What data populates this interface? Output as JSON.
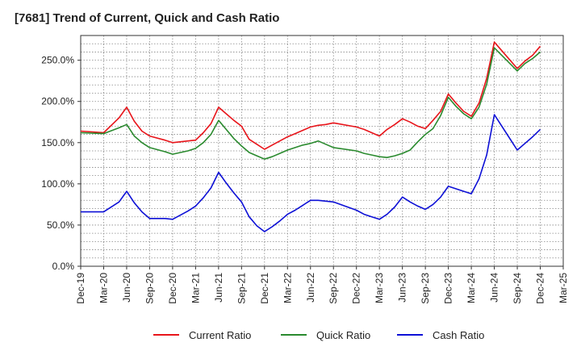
{
  "chart_data": {
    "type": "line",
    "title": "[7681]  Trend of Current, Quick and Cash Ratio",
    "xlabel": "",
    "ylabel": "",
    "ylim": [
      0,
      280
    ],
    "yticks": [
      0,
      50,
      100,
      150,
      200,
      250
    ],
    "ytick_labels": [
      "0.0%",
      "50.0%",
      "100.0%",
      "150.0%",
      "200.0%",
      "250.0%"
    ],
    "xtick_labels": [
      "Dec-19",
      "Mar-20",
      "Jun-20",
      "Sep-20",
      "Dec-20",
      "Mar-21",
      "Jun-21",
      "Sep-21",
      "Dec-21",
      "Mar-22",
      "Jun-22",
      "Sep-22",
      "Dec-22",
      "Mar-23",
      "Jun-23",
      "Sep-23",
      "Dec-23",
      "Mar-24",
      "Jun-24",
      "Sep-24",
      "Dec-24",
      "Mar-25"
    ],
    "x_month_range": [
      0,
      63
    ],
    "grid": true,
    "legend_position": "bottom",
    "series": [
      {
        "name": "Current Ratio",
        "color": "#e8141a",
        "months": [
          0,
          3,
          5,
          6,
          7,
          8,
          9,
          11,
          12,
          14,
          15,
          16,
          17,
          18,
          19,
          20,
          21,
          22,
          23,
          24,
          25,
          26,
          27,
          28,
          29,
          30,
          31,
          32,
          33,
          36,
          37,
          38,
          39,
          40,
          41,
          42,
          43,
          44,
          45,
          46,
          47,
          48,
          49,
          50,
          51,
          52,
          53,
          54,
          57,
          58,
          59,
          60
        ],
        "values": [
          164,
          162,
          180,
          193,
          176,
          164,
          158,
          153,
          150,
          152,
          153,
          162,
          173,
          193,
          185,
          177,
          170,
          154,
          148,
          142,
          147,
          152,
          157,
          161,
          165,
          169,
          171,
          172,
          174,
          169,
          166,
          162,
          158,
          166,
          172,
          179,
          175,
          170,
          167,
          177,
          188,
          209,
          198,
          188,
          182,
          198,
          228,
          272,
          240,
          249,
          256,
          267
        ]
      },
      {
        "name": "Quick Ratio",
        "color": "#2a8a2e",
        "months": [
          0,
          3,
          5,
          6,
          7,
          8,
          9,
          11,
          12,
          14,
          15,
          16,
          17,
          18,
          19,
          20,
          21,
          22,
          23,
          24,
          25,
          26,
          27,
          28,
          29,
          30,
          31,
          32,
          33,
          36,
          37,
          38,
          39,
          40,
          41,
          42,
          43,
          44,
          45,
          46,
          47,
          48,
          49,
          50,
          51,
          52,
          53,
          54,
          57,
          58,
          59,
          60
        ],
        "values": [
          162,
          161,
          168,
          172,
          158,
          150,
          144,
          139,
          136,
          140,
          143,
          150,
          160,
          177,
          166,
          155,
          146,
          138,
          134,
          130,
          133,
          137,
          141,
          144,
          147,
          149,
          152,
          148,
          144,
          140,
          137,
          135,
          133,
          132,
          134,
          137,
          141,
          151,
          160,
          167,
          183,
          205,
          194,
          185,
          179,
          193,
          221,
          265,
          237,
          246,
          252,
          260
        ]
      },
      {
        "name": "Cash Ratio",
        "color": "#0d10d6",
        "months": [
          0,
          3,
          5,
          6,
          7,
          8,
          9,
          11,
          12,
          14,
          15,
          16,
          17,
          18,
          19,
          20,
          21,
          22,
          23,
          24,
          25,
          26,
          27,
          28,
          29,
          30,
          31,
          32,
          33,
          36,
          37,
          38,
          39,
          40,
          41,
          42,
          43,
          44,
          45,
          46,
          47,
          48,
          49,
          50,
          51,
          52,
          53,
          54,
          57,
          58,
          59,
          60
        ],
        "values": [
          66,
          66,
          78,
          91,
          77,
          66,
          58,
          58,
          57,
          67,
          73,
          83,
          95,
          114,
          101,
          89,
          78,
          60,
          49,
          42,
          48,
          55,
          63,
          68,
          74,
          80,
          80,
          79,
          78,
          68,
          63,
          60,
          57,
          63,
          72,
          84,
          78,
          73,
          69,
          75,
          84,
          97,
          94,
          91,
          88,
          106,
          135,
          184,
          141,
          149,
          157,
          166
        ]
      }
    ]
  }
}
